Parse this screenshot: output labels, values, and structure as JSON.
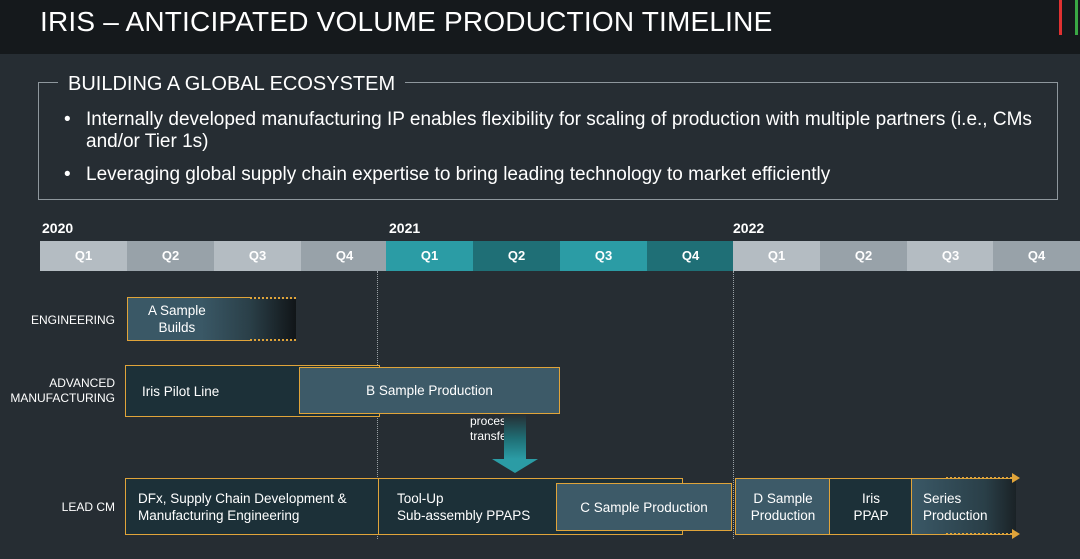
{
  "title": "IRIS – ANTICIPATED VOLUME PRODUCTION TIMELINE",
  "ecosystem": {
    "heading": "BUILDING A GLOBAL ECOSYSTEM",
    "bullets": [
      "Internally developed manufacturing IP enables flexibility for scaling of production with multiple partners (i.e., CMs and/or Tier 1s)",
      "Leveraging global supply chain expertise to bring leading technology to market efficiently"
    ]
  },
  "timeline": {
    "years": [
      "2020",
      "2021",
      "2022"
    ],
    "quarters": [
      "Q1",
      "Q2",
      "Q3",
      "Q4",
      "Q1",
      "Q2",
      "Q3",
      "Q4",
      "Q1",
      "Q2",
      "Q3",
      "Q4"
    ]
  },
  "rows": {
    "engineering": "ENGINEERING",
    "advanced_1": "ADVANCED",
    "advanced_2": "MANUFACTURING",
    "leadcm": "LEAD CM"
  },
  "bars": {
    "a_sample_1": "A Sample",
    "a_sample_2": "Builds",
    "iris_pilot": "Iris Pilot Line",
    "b_sample": "B Sample Production",
    "dfx_1": "DFx, Supply Chain Development &",
    "dfx_2": "Manufacturing Engineering",
    "toolup_1": "Tool-Up",
    "toolup_2": "Sub-assembly PPAPS",
    "c_sample": "C Sample Production",
    "d_sample_1": "D Sample",
    "d_sample_2": "Production",
    "iris_ppap_1": "Iris",
    "iris_ppap_2": "PPAP",
    "series_1": "Series",
    "series_2": "Production"
  },
  "process_transfer_1": "process",
  "process_transfer_2": "transfer",
  "colors": {
    "accent_red": "#e03131",
    "accent_green": "#3aa845",
    "bar_border": "#e0a43a"
  }
}
